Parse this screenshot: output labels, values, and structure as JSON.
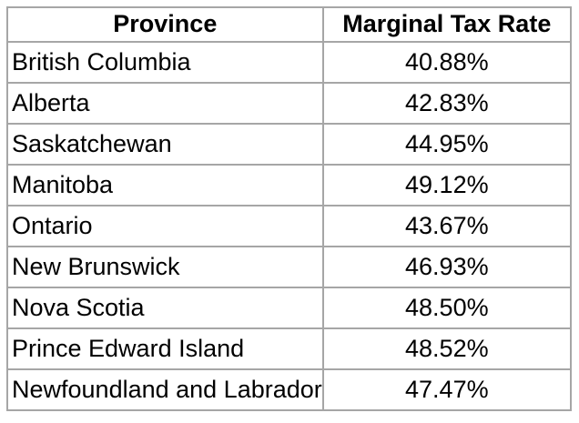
{
  "table": {
    "columns": [
      "Province",
      "Marginal Tax Rate"
    ],
    "rows": [
      {
        "province": "British Columbia",
        "rate": "40.88%"
      },
      {
        "province": "Alberta",
        "rate": "42.83%"
      },
      {
        "province": "Saskatchewan",
        "rate": "44.95%"
      },
      {
        "province": "Manitoba",
        "rate": "49.12%"
      },
      {
        "province": "Ontario",
        "rate": "43.67%"
      },
      {
        "province": "New Brunswick",
        "rate": "46.93%"
      },
      {
        "province": "Nova Scotia",
        "rate": "48.50%"
      },
      {
        "province": "Prince Edward Island",
        "rate": "48.52%"
      },
      {
        "province": "Newfoundland and Labrador",
        "rate": "47.47%"
      }
    ]
  },
  "colors": {
    "border": "#a6a6a6",
    "text": "#000000",
    "background": "#ffffff"
  }
}
